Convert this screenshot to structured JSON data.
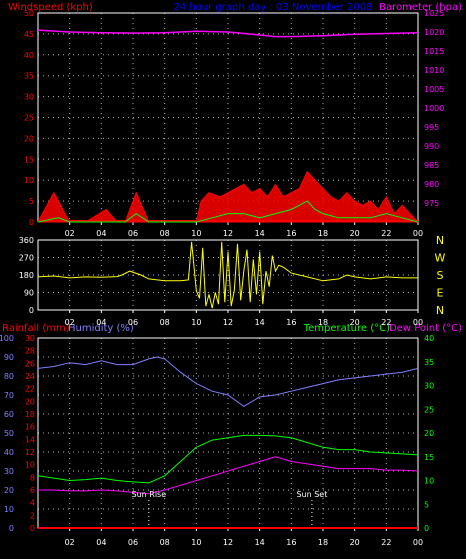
{
  "colors": {
    "background": "#000000",
    "frame": "#ffffff",
    "grid": "#ffffff",
    "wind_avg": "#00ff00",
    "wind_gust": "#ff0000",
    "barometer": "#ff00ff",
    "direction": "#ffff00",
    "humidity": "#8080ff",
    "temperature": "#00ff00",
    "dewpoint": "#ff00ff",
    "rainfall": "#ff0000",
    "title": "#0000ff",
    "axis_red": "#ff0000",
    "axis_magenta": "#ff00ff",
    "axis_blue": "#8080ff",
    "axis_green": "#00ff00",
    "axis_white": "#ffffff"
  },
  "header": {
    "wind_label": "Windspeed (kph)",
    "title": "24 hour graph day : 03 November 2008",
    "baro_label": "Barometer (hpa)"
  },
  "chart_data": [
    {
      "type": "line",
      "title": "24 hour graph day : 03 November 2008",
      "x_ticks": [
        "02",
        "04",
        "06",
        "08",
        "10",
        "12",
        "14",
        "16",
        "18",
        "20",
        "22",
        "00"
      ],
      "left_axis": {
        "label": "Windspeed (kph)",
        "range": [
          0,
          50
        ],
        "ticks": [
          0,
          5,
          10,
          15,
          20,
          25,
          30,
          35,
          40,
          45,
          50
        ]
      },
      "right_axis": {
        "label": "Barometer (hpa)",
        "range": [
          970,
          1025
        ],
        "ticks": [
          975,
          980,
          985,
          990,
          995,
          1000,
          1005,
          1010,
          1015,
          1020,
          1025
        ]
      },
      "grid": true,
      "series": [
        {
          "name": "Barometer (hpa)",
          "axis": "right",
          "x_hours": [
            0,
            2,
            4,
            6,
            8,
            10,
            12,
            14,
            15,
            16,
            18,
            20,
            22,
            24
          ],
          "values": [
            1020.5,
            1020.0,
            1019.8,
            1019.7,
            1019.8,
            1020.2,
            1020.0,
            1019.2,
            1018.8,
            1018.8,
            1019.0,
            1019.4,
            1019.6,
            1019.8
          ]
        },
        {
          "name": "Gust (kph)",
          "axis": "left",
          "x_hours": [
            0,
            1.0,
            1.3,
            1.7,
            2.0,
            3.0,
            4.3,
            5.0,
            5.5,
            6.2,
            7.0,
            8.0,
            9.0,
            10.0,
            10.3,
            10.8,
            11.5,
            12.0,
            12.5,
            13.0,
            13.5,
            14.0,
            14.5,
            15.0,
            15.5,
            16.0,
            16.5,
            17.0,
            17.5,
            18.0,
            18.5,
            19.0,
            19.5,
            20.0,
            20.5,
            21.0,
            21.5,
            22.0,
            22.5,
            23.0,
            24.0
          ],
          "values": [
            0,
            7,
            5,
            2,
            0,
            0,
            3,
            0,
            0,
            7,
            0,
            0,
            0,
            0,
            5,
            7,
            6,
            7,
            8,
            9,
            7,
            8,
            6,
            9,
            6,
            7,
            8,
            12,
            10,
            8,
            6,
            5,
            7,
            5,
            4,
            5,
            3,
            6,
            2,
            4,
            0
          ]
        },
        {
          "name": "Average (kph)",
          "axis": "left",
          "x_hours": [
            0,
            1.3,
            2.0,
            5.5,
            6.2,
            7.0,
            10.0,
            11.0,
            12.0,
            13.0,
            14.0,
            15.0,
            16.0,
            16.5,
            17.0,
            17.5,
            18.0,
            19.0,
            20.0,
            21.0,
            22.0,
            23.0,
            24.0
          ],
          "values": [
            0,
            1,
            0,
            0,
            2,
            0,
            0,
            1,
            2,
            2,
            1,
            2,
            3,
            4,
            5,
            3,
            2,
            1,
            1,
            1,
            2,
            1,
            0
          ]
        }
      ]
    },
    {
      "type": "line",
      "left_axis": {
        "label": "",
        "range": [
          0,
          360
        ],
        "ticks": [
          0,
          90,
          180,
          270,
          360
        ]
      },
      "right_axis": {
        "label": "",
        "ticks": [
          "N",
          "W",
          "S",
          "E",
          "N"
        ]
      },
      "grid": true,
      "series": [
        {
          "name": "Wind direction",
          "x_hours": [
            0,
            1,
            2,
            3,
            4,
            5,
            5.3,
            5.8,
            6.5,
            7,
            8,
            9,
            9.5,
            9.7,
            10,
            10.2,
            10.4,
            10.6,
            10.8,
            11,
            11.2,
            11.4,
            11.6,
            11.8,
            12,
            12.2,
            12.4,
            12.6,
            12.8,
            13,
            13.2,
            13.4,
            13.6,
            13.8,
            14,
            14.2,
            14.4,
            14.6,
            14.8,
            15,
            15.2,
            15.5,
            16,
            17,
            18,
            19,
            19.5,
            20,
            21,
            22,
            23,
            24
          ],
          "values": [
            170,
            175,
            165,
            170,
            168,
            172,
            180,
            200,
            180,
            160,
            150,
            150,
            155,
            350,
            100,
            60,
            320,
            20,
            80,
            10,
            90,
            30,
            350,
            40,
            300,
            20,
            100,
            340,
            50,
            200,
            310,
            40,
            260,
            80,
            300,
            30,
            200,
            120,
            280,
            200,
            230,
            220,
            190,
            170,
            150,
            160,
            180,
            170,
            160,
            170,
            165,
            165
          ]
        }
      ]
    },
    {
      "type": "line",
      "x_ticks": [
        "02",
        "04",
        "06",
        "08",
        "10",
        "12",
        "14",
        "16",
        "18",
        "20",
        "22",
        "00"
      ],
      "rain_axis": {
        "label": "Rainfall (mm)",
        "range": [
          0,
          30
        ],
        "ticks": [
          0,
          2,
          4,
          6,
          8,
          10,
          12,
          14,
          16,
          18,
          20,
          22,
          24,
          26,
          28,
          30
        ]
      },
      "humidity_axis": {
        "label": "Humidity (%)",
        "range": [
          0,
          100
        ],
        "ticks": [
          0,
          10,
          20,
          30,
          40,
          50,
          60,
          70,
          80,
          90,
          100
        ]
      },
      "temperature_axis": {
        "label": "Temperature (°C)",
        "range": [
          0,
          40
        ],
        "ticks": [
          0,
          5,
          10,
          15,
          20,
          25,
          30,
          35,
          40
        ]
      },
      "dewpoint_label": "Dew Point (°C)",
      "annotations": [
        {
          "text": "Sun Rise",
          "hour": 7.0
        },
        {
          "text": "Sun Set",
          "hour": 17.3
        }
      ],
      "grid": true,
      "series": [
        {
          "name": "Humidity (%)",
          "axis": "humidity",
          "x_hours": [
            0,
            1,
            2,
            3,
            4,
            5,
            6,
            7,
            7.5,
            8,
            9,
            10,
            11,
            12,
            13,
            14,
            15,
            16,
            17,
            18,
            19,
            20,
            21,
            22,
            23,
            24
          ],
          "values": [
            84,
            85,
            87,
            86,
            88,
            86,
            86,
            89,
            90,
            89,
            82,
            76,
            72,
            70,
            64,
            69,
            70,
            72,
            74,
            76,
            78,
            79,
            80,
            81,
            82,
            84
          ]
        },
        {
          "name": "Temperature (°C)",
          "axis": "temperature",
          "x_hours": [
            0,
            1,
            2,
            3,
            4,
            5,
            6,
            7,
            8,
            9,
            10,
            11,
            12,
            13,
            14,
            15,
            16,
            17,
            18,
            19,
            20,
            21,
            22,
            23,
            24
          ],
          "values": [
            11,
            10.5,
            10,
            10.2,
            10.5,
            10,
            9.7,
            9.5,
            11,
            14,
            17,
            18.5,
            19,
            19.5,
            19.5,
            19.4,
            19,
            18,
            17,
            16.5,
            16.5,
            16,
            15.8,
            15.6,
            15.4
          ]
        },
        {
          "name": "Dew Point (°C)",
          "axis": "temperature",
          "x_hours": [
            0,
            1,
            2,
            3,
            4,
            5,
            6,
            7,
            8,
            9,
            10,
            11,
            12,
            13,
            14,
            15,
            16,
            17,
            18,
            19,
            20,
            21,
            22,
            23,
            24
          ],
          "values": [
            8,
            8,
            7.8,
            7.8,
            8,
            7.8,
            7.5,
            7.2,
            8,
            9,
            10,
            11,
            12,
            13,
            14,
            15,
            14,
            13.5,
            13,
            12.5,
            12.5,
            12.5,
            12.2,
            12.2,
            12
          ]
        },
        {
          "name": "Rainfall (mm)",
          "axis": "rain",
          "x_hours": [
            0,
            24
          ],
          "values": [
            0,
            0
          ]
        }
      ]
    }
  ],
  "panel3_labels": {
    "rain": "Rainfall (mm)",
    "humidity": "Humidity (%)",
    "temperature": "Temperature (°C)",
    "dewpoint": "Dew Point (°C)"
  }
}
